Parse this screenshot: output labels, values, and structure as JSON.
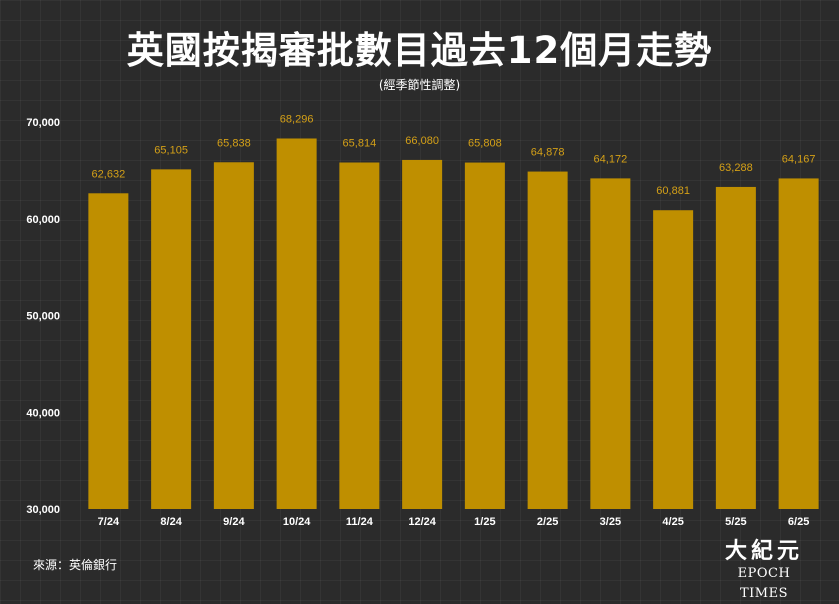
{
  "chart_data": {
    "type": "bar",
    "title": "英國按揭審批數目過去12個月走勢",
    "subtitle": "(經季節性調整)",
    "categories": [
      "7/24",
      "8/24",
      "9/24",
      "10/24",
      "11/24",
      "12/24",
      "1/25",
      "2/25",
      "3/25",
      "4/25",
      "5/25",
      "6/25"
    ],
    "values": [
      62632,
      65105,
      65838,
      68296,
      65814,
      66080,
      65808,
      64878,
      64172,
      60881,
      63288,
      64167
    ],
    "value_labels": [
      "62,632",
      "65,105",
      "65,838",
      "68,296",
      "65,814",
      "66,080",
      "65,808",
      "64,878",
      "64,172",
      "60,881",
      "63,288",
      "64,167"
    ],
    "ylim": [
      30000,
      70000
    ],
    "yticks": [
      30000,
      40000,
      50000,
      60000,
      70000
    ],
    "ytick_labels": [
      "30,000",
      "40,000",
      "50,000",
      "60,000",
      "70,000"
    ],
    "xlabel": "",
    "ylabel": "",
    "grid": true,
    "colors": {
      "bar": "#bf8f00",
      "value_label": "#d4a017",
      "background": "#2b2b2b",
      "text": "#ffffff"
    }
  },
  "source": "來源：英倫銀行",
  "logo": {
    "chinese": "大紀元",
    "english": "EPOCH TIMES"
  }
}
